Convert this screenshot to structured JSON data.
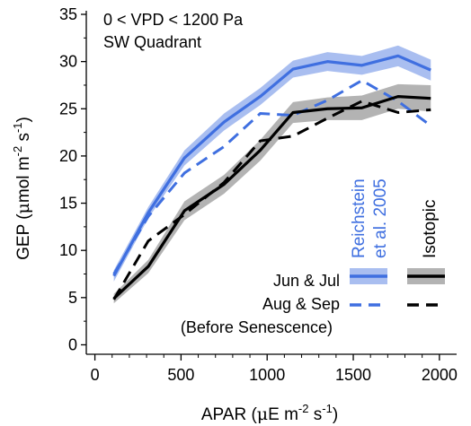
{
  "chart_data": {
    "type": "line",
    "annotations": [
      "0 < VPD < 1200 Pa",
      "SW Quadrant"
    ],
    "xlabel": {
      "pre": "APAR (",
      "mu": "μ",
      "mid": "E m",
      "sup1": "-2",
      "mid2": " s",
      "sup2": "-1",
      "post": ")"
    },
    "ylabel": {
      "pre": "GEP (",
      "mu": "μ",
      "mid": "mol m",
      "sup1": "-2",
      "mid2": " s",
      "sup2": "-1",
      "post": ")"
    },
    "xlim": [
      -50,
      2100
    ],
    "ylim": [
      -1,
      35
    ],
    "xticks": [
      0,
      500,
      1000,
      1500,
      2000
    ],
    "yticks": [
      0,
      5,
      10,
      15,
      20,
      25,
      30,
      35
    ],
    "group_labels": {
      "reichstein_line1": "Reichstein",
      "reichstein_line2": "et al. 2005",
      "isotopic": "Isotopic"
    },
    "legend": {
      "row1": "Jun & Jul",
      "row2": "Aug & Sep",
      "row3": "(Before Senescence)"
    },
    "colors": {
      "reichstein": "#3f6fe0",
      "reichstein_band": "#a9bef0",
      "isotopic": "#000000",
      "isotopic_band": "#b3b3b3"
    },
    "series": [
      {
        "group": "reichstein",
        "period": "jun_jul",
        "style": "solid",
        "band": true,
        "x": [
          110,
          310,
          520,
          750,
          960,
          1150,
          1350,
          1550,
          1760,
          1950
        ],
        "values": [
          7.3,
          14.0,
          19.8,
          23.6,
          26.3,
          29.2,
          30.0,
          29.6,
          30.6,
          29.1
        ],
        "band_halfwidth": [
          0.6,
          0.6,
          0.8,
          0.9,
          0.9,
          0.9,
          1.0,
          1.0,
          1.1,
          1.1
        ]
      },
      {
        "group": "reichstein",
        "period": "aug_sep",
        "style": "dashed",
        "band": false,
        "x": [
          110,
          310,
          520,
          750,
          960,
          1150,
          1350,
          1550,
          1760,
          1950
        ],
        "values": [
          7.5,
          13.6,
          18.2,
          21.0,
          24.5,
          24.3,
          25.9,
          28.0,
          25.8,
          23.2
        ]
      },
      {
        "group": "isotopic",
        "period": "jun_jul",
        "style": "solid",
        "band": true,
        "x": [
          110,
          310,
          520,
          750,
          960,
          1150,
          1350,
          1550,
          1760,
          1950
        ],
        "values": [
          4.9,
          8.3,
          14.2,
          17.0,
          20.6,
          24.6,
          25.0,
          25.1,
          26.3,
          26.1
        ],
        "band_halfwidth": [
          0.5,
          0.7,
          1.0,
          1.0,
          1.1,
          1.1,
          1.2,
          1.3,
          1.3,
          1.4
        ]
      },
      {
        "group": "isotopic",
        "period": "aug_sep",
        "style": "dashed",
        "band": false,
        "x": [
          110,
          310,
          520,
          750,
          960,
          1150,
          1350,
          1550,
          1760,
          1950
        ],
        "values": [
          4.8,
          11.0,
          13.8,
          17.2,
          21.6,
          22.1,
          24.0,
          25.8,
          24.6,
          24.9
        ]
      }
    ]
  }
}
